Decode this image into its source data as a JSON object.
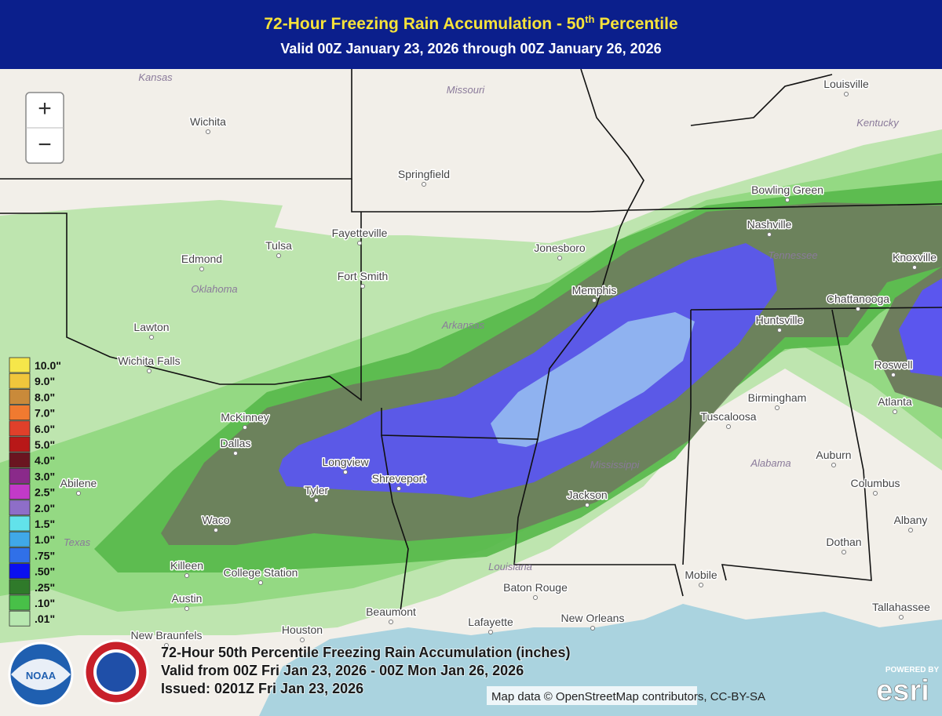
{
  "header": {
    "title": {
      "text_before": "72-Hour Freezing Rain Accumulation - 50",
      "superscript": "th",
      "text_after": " Percentile"
    },
    "subtitle": "Valid 00Z January 23, 2026 through 00Z January 26, 2026"
  },
  "zoom": {
    "in": "+",
    "out": "−"
  },
  "legend": [
    {
      "label": "10.0\"",
      "color": "#f6e64a"
    },
    {
      "label": "9.0\"",
      "color": "#f0c63c"
    },
    {
      "label": "8.0\"",
      "color": "#c98a3a"
    },
    {
      "label": "7.0\"",
      "color": "#f07a30"
    },
    {
      "label": "6.0\"",
      "color": "#e0402a"
    },
    {
      "label": "5.0\"",
      "color": "#b81818"
    },
    {
      "label": "4.0\"",
      "color": "#6a1520"
    },
    {
      "label": "3.0\"",
      "color": "#8a2a8a"
    },
    {
      "label": "2.5\"",
      "color": "#c23ac8"
    },
    {
      "label": "2.0\"",
      "color": "#8e6ec8"
    },
    {
      "label": "1.5\"",
      "color": "#62e2ea"
    },
    {
      "label": "1.0\"",
      "color": "#40a8e8"
    },
    {
      "label": ".75\"",
      "color": "#3070e8"
    },
    {
      "label": ".50\"",
      "color": "#0a10f0"
    },
    {
      "label": ".25\"",
      "color": "#2f7a2a"
    },
    {
      "label": ".10\"",
      "color": "#48c048"
    },
    {
      "label": ".01\"",
      "color": "#b8e8b0"
    }
  ],
  "cities": [
    "Wichita",
    "Springfield",
    "Louisville",
    "Tulsa",
    "Fayetteville",
    "Fort Smith",
    "Edmond",
    "Jonesboro",
    "Nashville",
    "Bowling Green",
    "Memphis",
    "Lawton",
    "Wichita Falls",
    "Huntsville",
    "Chattanooga",
    "Knoxville",
    "McKinney",
    "Dallas",
    "Longview",
    "Tyler",
    "Shreveport",
    "Birmingham",
    "Tuscaloosa",
    "Atlanta",
    "Roswell",
    "Abilene",
    "Waco",
    "Jackson",
    "Auburn",
    "Columbus",
    "Albany",
    "Killeen",
    "College Station",
    "Austin",
    "Dothan",
    "Baton Rouge",
    "Mobile",
    "Tallahassee",
    "Beaumont",
    "Lafayette",
    "New Orleans",
    "Houston",
    "New Braunfels"
  ],
  "states": [
    "Kansas",
    "Missouri",
    "Kentucky",
    "Tennessee",
    "Oklahoma",
    "Arkansas",
    "Mississippi",
    "Alabama",
    "Texas",
    "Louisiana"
  ],
  "footer": {
    "lines": [
      "72-Hour 50th Percentile Freezing Rain Accumulation (inches)",
      "Valid from 00Z Fri Jan 23, 2026 - 00Z Mon Jan 26, 2026",
      "Issued: 0201Z Fri Jan 23, 2026"
    ],
    "logos": [
      "NOAA"
    ],
    "attribution": "Map data © OpenStreetMap contributors, CC-BY-SA",
    "esri_powered": "POWERED BY",
    "esri": "esri"
  }
}
